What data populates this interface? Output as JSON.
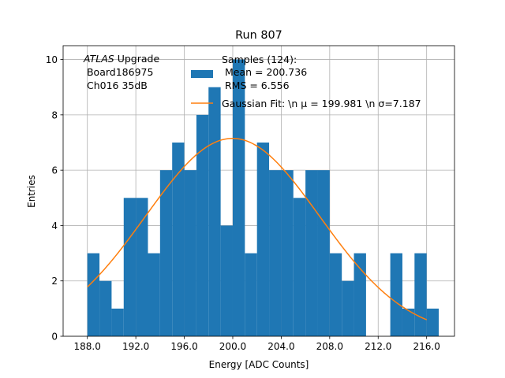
{
  "chart_data": {
    "type": "bar",
    "title": "Run 807",
    "xlabel": "Energy [ADC Counts]",
    "ylabel": "Entries",
    "xlim": [
      186.0,
      218.3
    ],
    "ylim": [
      0,
      10.5
    ],
    "x_ticks": [
      188.0,
      192.0,
      196.0,
      200.0,
      204.0,
      208.0,
      212.0,
      216.0
    ],
    "x_tick_labels": [
      "188.0",
      "192.0",
      "196.0",
      "200.0",
      "204.0",
      "208.0",
      "212.0",
      "216.0"
    ],
    "y_ticks": [
      0,
      2,
      4,
      6,
      8,
      10
    ],
    "grid": true,
    "bin_width": 1,
    "bins": [
      {
        "x": 188,
        "count": 3
      },
      {
        "x": 189,
        "count": 2
      },
      {
        "x": 190,
        "count": 1
      },
      {
        "x": 191,
        "count": 5
      },
      {
        "x": 192,
        "count": 5
      },
      {
        "x": 193,
        "count": 3
      },
      {
        "x": 194,
        "count": 6
      },
      {
        "x": 195,
        "count": 7
      },
      {
        "x": 196,
        "count": 6
      },
      {
        "x": 197,
        "count": 8
      },
      {
        "x": 198,
        "count": 9
      },
      {
        "x": 199,
        "count": 4
      },
      {
        "x": 200,
        "count": 10
      },
      {
        "x": 201,
        "count": 3
      },
      {
        "x": 202,
        "count": 7
      },
      {
        "x": 203,
        "count": 6
      },
      {
        "x": 204,
        "count": 6
      },
      {
        "x": 205,
        "count": 5
      },
      {
        "x": 206,
        "count": 6
      },
      {
        "x": 207,
        "count": 6
      },
      {
        "x": 208,
        "count": 3
      },
      {
        "x": 209,
        "count": 2
      },
      {
        "x": 210,
        "count": 3
      },
      {
        "x": 213,
        "count": 3
      },
      {
        "x": 214,
        "count": 1
      },
      {
        "x": 215,
        "count": 3
      },
      {
        "x": 216,
        "count": 1
      }
    ],
    "fit": {
      "mu": 199.981,
      "sigma": 7.187,
      "x_range": [
        188.0,
        216.0
      ],
      "peak": 7.15
    },
    "annotation": {
      "line1_italic": "ATLAS",
      "line1_rest": " Upgrade",
      "line2": " Board186975",
      "line3": " Ch016 35dB"
    },
    "legend": {
      "position": "top-right",
      "hist_line1": "Samples (124):",
      "hist_line2": " Mean = 200.736",
      "hist_line3": " RMS = 6.556",
      "fit_label": "Gaussian Fit: \\n μ = 199.981 \\n σ=7.187"
    },
    "colors": {
      "bars": "#1f77b4",
      "fit": "#ff7f0e",
      "grid": "#b0b0b0"
    }
  }
}
